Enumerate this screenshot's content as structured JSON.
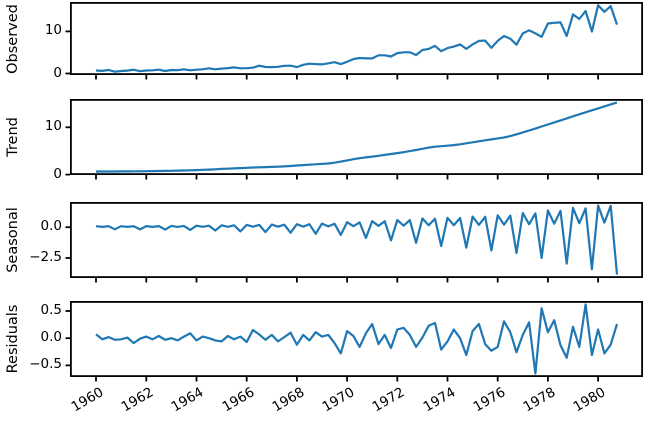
{
  "figure": {
    "background": "#ffffff",
    "axes_color": "#000000"
  },
  "chart_data": {
    "type": "line",
    "title": "",
    "xlabel": "",
    "legend": "none",
    "grid": false,
    "line_color": "#1f77b4",
    "x_start": 1960,
    "x_step": 0.25,
    "x_ticks": [
      1960,
      1962,
      1964,
      1966,
      1968,
      1970,
      1972,
      1974,
      1976,
      1978,
      1980
    ],
    "x_tick_labels": [
      "1960",
      "1962",
      "1964",
      "1966",
      "1968",
      "1970",
      "1972",
      "1974",
      "1976",
      "1978",
      "1980"
    ],
    "panels": [
      {
        "label": "Observed",
        "y_ticks": [
          0,
          10
        ],
        "y_tick_labels": [
          "0",
          "10"
        ],
        "values": [
          0.71,
          0.63,
          0.85,
          0.44,
          0.61,
          0.69,
          0.92,
          0.55,
          0.72,
          0.77,
          0.92,
          0.6,
          0.83,
          0.8,
          1.0,
          0.77,
          0.92,
          1.0,
          1.24,
          1.0,
          1.16,
          1.3,
          1.45,
          1.25,
          1.26,
          1.38,
          1.86,
          1.56,
          1.53,
          1.59,
          1.83,
          1.86,
          1.53,
          2.07,
          2.34,
          2.25,
          2.16,
          2.43,
          2.7,
          2.25,
          2.79,
          3.42,
          3.69,
          3.6,
          3.6,
          4.32,
          4.32,
          4.05,
          4.86,
          5.04,
          5.04,
          4.41,
          5.58,
          5.85,
          6.57,
          5.31,
          6.03,
          6.39,
          6.93,
          5.85,
          6.93,
          7.74,
          7.83,
          6.12,
          7.74,
          8.91,
          8.28,
          6.84,
          9.54,
          10.26,
          9.54,
          8.73,
          11.88,
          12.06,
          12.15,
          8.91,
          14.04,
          12.96,
          14.85,
          9.99,
          16.2,
          14.67,
          16.02,
          11.61
        ]
      },
      {
        "label": "Trend",
        "y_ticks": [
          0,
          10
        ],
        "y_tick_labels": [
          "0",
          "10"
        ],
        "values": [
          0.65,
          0.65,
          0.66,
          0.67,
          0.68,
          0.69,
          0.7,
          0.71,
          0.73,
          0.74,
          0.76,
          0.78,
          0.81,
          0.84,
          0.87,
          0.91,
          0.96,
          1.01,
          1.07,
          1.13,
          1.2,
          1.26,
          1.32,
          1.38,
          1.44,
          1.5,
          1.55,
          1.59,
          1.64,
          1.68,
          1.74,
          1.83,
          1.92,
          2.01,
          2.09,
          2.18,
          2.26,
          2.35,
          2.51,
          2.76,
          3.01,
          3.26,
          3.46,
          3.63,
          3.81,
          3.98,
          4.17,
          4.36,
          4.55,
          4.74,
          4.96,
          5.21,
          5.46,
          5.7,
          5.89,
          6.01,
          6.12,
          6.24,
          6.41,
          6.62,
          6.84,
          7.05,
          7.26,
          7.45,
          7.65,
          7.84,
          8.14,
          8.53,
          8.93,
          9.32,
          9.73,
          10.16,
          10.6,
          11.03,
          11.46,
          11.89,
          12.32,
          12.75,
          13.17,
          13.59,
          14.0,
          14.42,
          14.84,
          15.25
        ]
      },
      {
        "label": "Seasonal",
        "y_ticks": [
          0,
          -2.5
        ],
        "y_tick_labels": [
          "0.0",
          "−2.5"
        ],
        "values": [
          0.08,
          0.02,
          0.08,
          -0.17,
          0.08,
          0.02,
          0.08,
          -0.18,
          0.09,
          0.02,
          0.09,
          -0.2,
          0.1,
          0.02,
          0.1,
          -0.22,
          0.12,
          0.03,
          0.12,
          -0.27,
          0.15,
          0.03,
          0.15,
          -0.34,
          0.18,
          0.04,
          0.18,
          -0.4,
          0.21,
          0.04,
          0.2,
          -0.45,
          0.24,
          0.05,
          0.24,
          -0.54,
          0.29,
          0.06,
          0.28,
          -0.63,
          0.4,
          0.08,
          0.39,
          -0.88,
          0.49,
          0.1,
          0.48,
          -1.07,
          0.58,
          0.12,
          0.57,
          -1.27,
          0.7,
          0.15,
          0.69,
          -1.53,
          0.76,
          0.16,
          0.74,
          -1.66,
          0.86,
          0.18,
          0.84,
          -1.88,
          0.96,
          0.2,
          0.94,
          -2.09,
          1.14,
          0.24,
          1.12,
          -2.5,
          1.35,
          0.28,
          1.32,
          -2.95,
          1.56,
          0.32,
          1.52,
          -3.4,
          1.76,
          0.37,
          1.72,
          -3.84
        ]
      },
      {
        "label": "Residuals",
        "y_ticks": [
          0.5,
          0,
          -0.5
        ],
        "y_tick_labels": [
          "0.5",
          "0.0",
          "−0.5"
        ],
        "values": [
          0.07,
          -0.02,
          0.02,
          -0.03,
          -0.02,
          0.01,
          -0.09,
          -0.01,
          0.03,
          -0.02,
          0.04,
          -0.03,
          0.0,
          -0.04,
          0.03,
          0.09,
          -0.04,
          0.03,
          0.0,
          -0.04,
          -0.06,
          0.04,
          -0.02,
          0.03,
          -0.07,
          0.15,
          0.07,
          -0.03,
          0.06,
          -0.06,
          0.02,
          0.1,
          -0.12,
          0.06,
          -0.04,
          0.11,
          0.03,
          0.06,
          -0.09,
          -0.28,
          0.13,
          0.04,
          -0.16,
          0.09,
          0.26,
          -0.11,
          0.06,
          -0.18,
          0.16,
          0.19,
          0.06,
          -0.16,
          0.01,
          0.23,
          0.28,
          -0.21,
          -0.06,
          0.16,
          0.0,
          -0.31,
          0.13,
          0.26,
          -0.11,
          -0.23,
          -0.16,
          0.31,
          0.11,
          -0.26,
          0.06,
          0.29,
          -0.65,
          0.55,
          0.11,
          0.33,
          -0.13,
          -0.36,
          0.21,
          -0.16,
          0.62,
          -0.31,
          0.16,
          -0.28,
          -0.12,
          0.26
        ]
      }
    ]
  }
}
